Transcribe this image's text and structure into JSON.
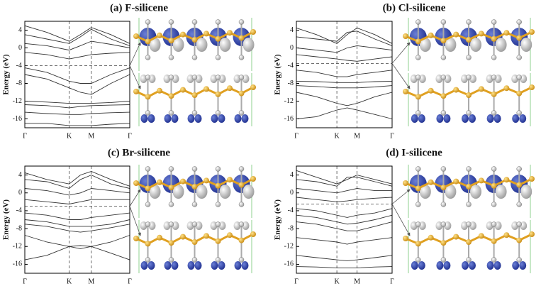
{
  "chart_data": [
    {
      "type": "line",
      "title": "(a) F-silicene",
      "y_label": "Energy (eV)",
      "color": "#333333",
      "fermi_level": -4,
      "x": [
        0,
        0.21,
        0.423,
        0.53,
        0.634,
        0.82,
        1
      ],
      "xlim": [
        0,
        1
      ],
      "xticks": [
        {
          "value": 0,
          "label": "Γ"
        },
        {
          "value": 0.423,
          "label": "K"
        },
        {
          "value": 0.634,
          "label": "M"
        },
        {
          "value": 1,
          "label": "Γ"
        }
      ],
      "ylim": [
        -18,
        6
      ],
      "yticks": [
        4,
        0,
        -4,
        -8,
        -12,
        -16
      ],
      "series": [
        {
          "values": [
            5,
            3.5,
            1.5,
            3,
            4.6,
            3,
            1
          ]
        },
        {
          "values": [
            3,
            2,
            1,
            2.5,
            4.2,
            2,
            0.5
          ]
        },
        {
          "values": [
            1,
            0.5,
            -0.5,
            0.5,
            1.5,
            0.8,
            0
          ]
        },
        {
          "values": [
            -1,
            -1.5,
            -2.5,
            -2,
            -1.5,
            -1.2,
            -1
          ]
        },
        {
          "values": [
            -4.5,
            -5.5,
            -7.5,
            -8,
            -8,
            -6,
            -4.5
          ]
        },
        {
          "values": [
            -6,
            -7,
            -9,
            -10,
            -10.5,
            -8,
            -6
          ]
        },
        {
          "values": [
            -12,
            -12.2,
            -12.5,
            -12.5,
            -12.5,
            -12.3,
            -12
          ]
        },
        {
          "values": [
            -12.8,
            -13,
            -13.5,
            -13.2,
            -13,
            -12.9,
            -12.8
          ]
        },
        {
          "values": [
            -14.5,
            -14.8,
            -15,
            -15,
            -14.8,
            -14.6,
            -14.5
          ]
        },
        {
          "values": [
            -17,
            -17,
            -17.5,
            -17.5,
            -17.5,
            -17.2,
            -17
          ]
        }
      ]
    },
    {
      "type": "line",
      "title": "(b) Cl-silicene",
      "y_label": "Energy (eV)",
      "color": "#333333",
      "fermi_level": -3.5,
      "x": [
        0,
        0.21,
        0.423,
        0.53,
        0.634,
        0.82,
        1
      ],
      "xlim": [
        0,
        1
      ],
      "xticks": [
        {
          "value": 0,
          "label": "Γ"
        },
        {
          "value": 0.423,
          "label": "K"
        },
        {
          "value": 0.634,
          "label": "M"
        },
        {
          "value": 1,
          "label": "Γ"
        }
      ],
      "ylim": [
        -18,
        6
      ],
      "yticks": [
        4,
        0,
        -4,
        -8,
        -12,
        -16
      ],
      "series": [
        {
          "values": [
            4.5,
            3,
            1,
            3,
            4.5,
            3,
            1
          ]
        },
        {
          "values": [
            2.5,
            2,
            1.5,
            3.5,
            3.8,
            2,
            0.5
          ]
        },
        {
          "values": [
            0,
            -0.5,
            -1,
            0,
            0.5,
            0,
            -0.5
          ]
        },
        {
          "values": [
            -1.5,
            -2,
            -2.5,
            -2.8,
            -3,
            -2.5,
            -2
          ]
        },
        {
          "values": [
            -5,
            -5.5,
            -6.5,
            -6.5,
            -6,
            -5.5,
            -5
          ]
        },
        {
          "values": [
            -7.5,
            -7.6,
            -7.8,
            -7.8,
            -7.8,
            -7.6,
            -7.5
          ]
        },
        {
          "values": [
            -8.5,
            -8.7,
            -9,
            -9,
            -9,
            -8.8,
            -8.5
          ]
        },
        {
          "values": [
            -10,
            -11,
            -12.5,
            -13,
            -12.5,
            -11,
            -10
          ]
        },
        {
          "values": [
            -16,
            -15.5,
            -14,
            -13.5,
            -14,
            -15,
            -16
          ]
        }
      ]
    },
    {
      "type": "line",
      "title": "(c) Br-silicene",
      "y_label": "Energy (eV)",
      "color": "#333333",
      "fermi_level": -3,
      "x": [
        0,
        0.21,
        0.423,
        0.53,
        0.634,
        0.82,
        1
      ],
      "xlim": [
        0,
        1
      ],
      "xticks": [
        {
          "value": 0,
          "label": "Γ"
        },
        {
          "value": 0.423,
          "label": "K"
        },
        {
          "value": 0.634,
          "label": "M"
        },
        {
          "value": 1,
          "label": "Γ"
        }
      ],
      "ylim": [
        -18,
        6
      ],
      "yticks": [
        4,
        0,
        -4,
        -8,
        -12,
        -16
      ],
      "series": [
        {
          "values": [
            4.5,
            3,
            2,
            4,
            4.8,
            3,
            1.5
          ]
        },
        {
          "values": [
            3,
            2.5,
            1,
            3,
            4,
            2,
            1
          ]
        },
        {
          "values": [
            1,
            0.5,
            -0.5,
            0,
            1,
            0.5,
            0
          ]
        },
        {
          "values": [
            -1.5,
            -2,
            -2.5,
            -2,
            -1.5,
            -1.5,
            -1.5
          ]
        },
        {
          "values": [
            -4.5,
            -5,
            -6,
            -6,
            -5.5,
            -5,
            -4.5
          ]
        },
        {
          "values": [
            -6,
            -6.5,
            -7.5,
            -7.5,
            -7.5,
            -7,
            -6
          ]
        },
        {
          "values": [
            -7,
            -7.5,
            -8.5,
            -8.8,
            -8.5,
            -7.8,
            -7
          ]
        },
        {
          "values": [
            -9.5,
            -11,
            -12,
            -12.5,
            -12,
            -11,
            -9.5
          ]
        },
        {
          "values": [
            -15,
            -14,
            -12,
            -11.8,
            -12,
            -13.5,
            -15
          ]
        }
      ]
    },
    {
      "type": "line",
      "title": "(d) I-silicene",
      "y_label": "Energy (eV)",
      "color": "#333333",
      "fermi_level": -2.5,
      "x": [
        0,
        0.21,
        0.423,
        0.53,
        0.634,
        0.82,
        1
      ],
      "xlim": [
        0,
        1
      ],
      "xticks": [
        {
          "value": 0,
          "label": "Γ"
        },
        {
          "value": 0.423,
          "label": "K"
        },
        {
          "value": 0.634,
          "label": "M"
        },
        {
          "value": 1,
          "label": "Γ"
        }
      ],
      "ylim": [
        -18,
        6
      ],
      "yticks": [
        4,
        0,
        -4,
        -8,
        -12,
        -16
      ],
      "series": [
        {
          "values": [
            5,
            3.5,
            2,
            3,
            4,
            3,
            2
          ]
        },
        {
          "values": [
            3,
            2.5,
            1.5,
            3.5,
            3.5,
            2.5,
            1.5
          ]
        },
        {
          "values": [
            1,
            0.5,
            0,
            0.5,
            1,
            0.5,
            0.5
          ]
        },
        {
          "values": [
            -1,
            -1.5,
            -2,
            -1.8,
            -1.5,
            -1.2,
            -1
          ]
        },
        {
          "values": [
            -3.5,
            -4,
            -5,
            -5.5,
            -5,
            -4.5,
            -3.5
          ]
        },
        {
          "values": [
            -5,
            -5.5,
            -6.5,
            -7,
            -6.8,
            -6,
            -5
          ]
        },
        {
          "values": [
            -6.5,
            -7,
            -8,
            -8.5,
            -8.5,
            -7.5,
            -6.5
          ]
        },
        {
          "values": [
            -10,
            -10.5,
            -11,
            -11.5,
            -11,
            -10.5,
            -10
          ]
        },
        {
          "values": [
            -14,
            -14.5,
            -15,
            -15.2,
            -15,
            -14.5,
            -14
          ]
        },
        {
          "values": [
            -16.5,
            -16.6,
            -16.8,
            -16.8,
            -16.8,
            -16.6,
            -16.5
          ]
        }
      ]
    }
  ]
}
